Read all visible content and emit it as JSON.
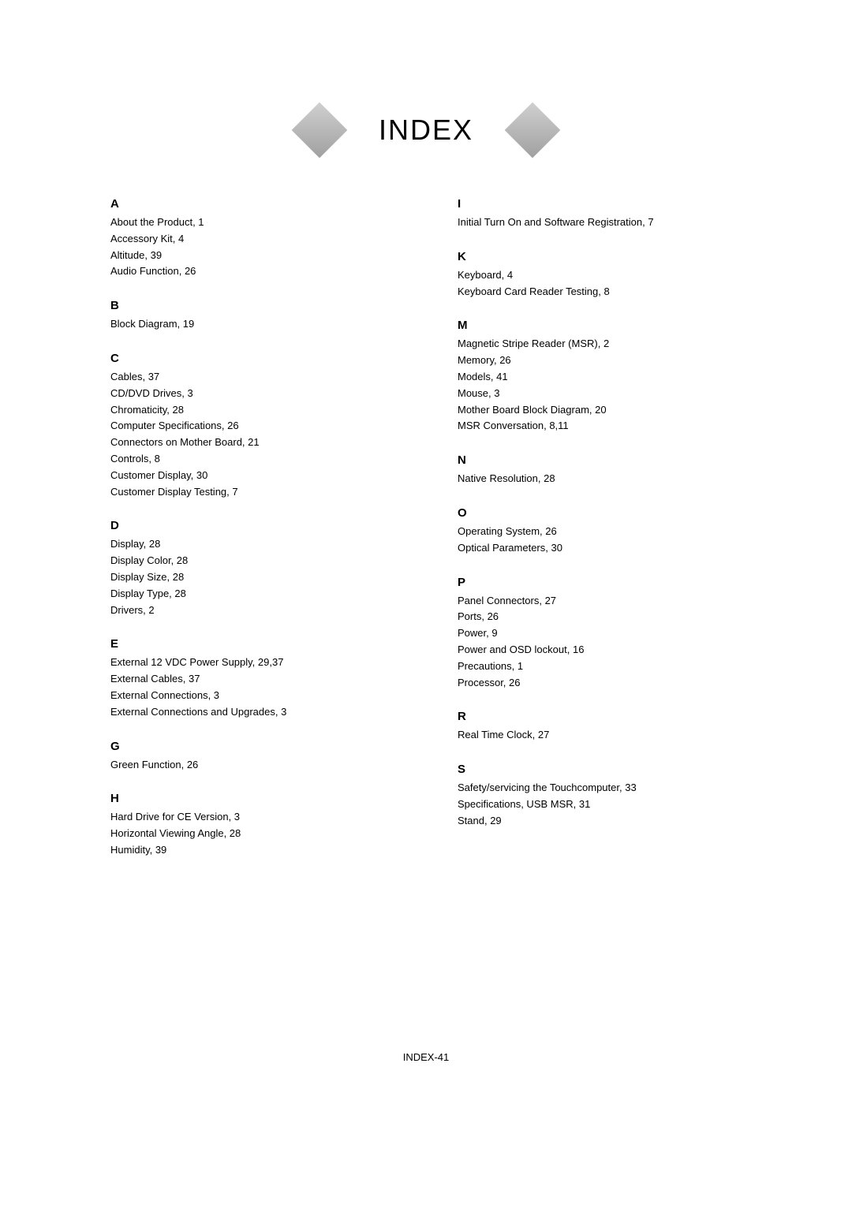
{
  "page": {
    "title": "INDEX",
    "footer": "INDEX-41"
  },
  "left_column": {
    "sections": [
      {
        "letter": "A",
        "entries": [
          "About the Product, 1",
          "Accessory Kit, 4",
          "Altitude, 39",
          "Audio Function, 26"
        ]
      },
      {
        "letter": "B",
        "entries": [
          "Block Diagram, 19"
        ]
      },
      {
        "letter": "C",
        "entries": [
          "Cables, 37",
          "CD/DVD Drives, 3",
          "Chromaticity, 28",
          "Computer Specifications, 26",
          "Connectors on Mother Board, 21",
          "Controls, 8",
          "Customer Display, 30",
          "Customer Display Testing, 7"
        ]
      },
      {
        "letter": "D",
        "entries": [
          "Display, 28",
          "Display Color, 28",
          "Display Size, 28",
          "Display Type, 28",
          "Drivers, 2"
        ]
      },
      {
        "letter": "E",
        "entries": [
          "External 12 VDC Power Supply, 29,37",
          "External Cables, 37",
          "External Connections, 3",
          "External Connections and Upgrades, 3"
        ]
      },
      {
        "letter": "G",
        "entries": [
          "Green Function, 26"
        ]
      },
      {
        "letter": "H",
        "entries": [
          "Hard Drive for CE Version, 3",
          "Horizontal Viewing Angle, 28",
          "Humidity, 39"
        ]
      }
    ]
  },
  "right_column": {
    "sections": [
      {
        "letter": "I",
        "entries": [
          "Initial Turn On and Software Registration, 7"
        ]
      },
      {
        "letter": "K",
        "entries": [
          "Keyboard, 4",
          "Keyboard Card Reader Testing, 8"
        ]
      },
      {
        "letter": "M",
        "entries": [
          "Magnetic Stripe Reader (MSR), 2",
          "Memory, 26",
          "Models, 41",
          "Mouse, 3",
          "Mother Board Block Diagram, 20",
          "MSR Conversation, 8,11"
        ]
      },
      {
        "letter": "N",
        "entries": [
          "Native Resolution, 28"
        ]
      },
      {
        "letter": "O",
        "entries": [
          "Operating System, 26",
          "Optical Parameters, 30"
        ]
      },
      {
        "letter": "P",
        "entries": [
          "Panel Connectors, 27",
          "Ports, 26",
          "Power, 9",
          "Power and OSD lockout, 16",
          "Precautions, 1",
          "Processor, 26"
        ]
      },
      {
        "letter": "R",
        "entries": [
          "Real Time Clock, 27"
        ]
      },
      {
        "letter": "S",
        "entries": [
          "Safety/servicing the Touchcomputer, 33",
          "Specifications, USB MSR, 31",
          "Stand, 29"
        ]
      }
    ]
  }
}
